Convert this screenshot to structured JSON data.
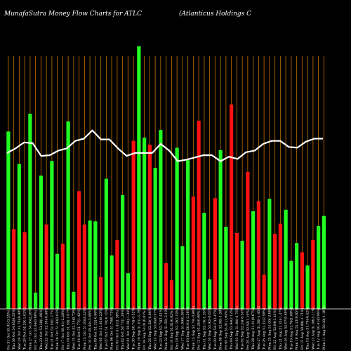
{
  "chart_data": {
    "type": "bar",
    "title_left": "MunafaSutra  Money Flow  Charts for ATLC",
    "title_right": "(Atlanticus Holdings C",
    "categories": [
      "Fri 31 Oct 55.81(3.25%)",
      "Thu 30 Oct 54.05(0.55%)",
      "Wed 29 Oct 53.76(-0.98%)",
      "Tue 28 Oct 54.29(-1.02%)",
      "Mon 27 Oct 54.85(2.26%)",
      "Fri 24 Oct 53.64(0.68%)",
      "Thu 23 Oct 53.28(1.86%)",
      "Wed 22 Oct 52.30(-0.46%)",
      "Tue 21 Oct 52.54(1.17%)",
      "Mon 20 Oct 51.93(3.02%)",
      "Fri 17 Oct 50.41(-2.28%)",
      "Thu 16 Oct 51.59(-1.07%)",
      "Wed 15 Oct 52.15(0.73%)",
      "Tue 14 Oct 51.77(1.45%)",
      "Mon 13 Oct 51.03(3.22%)",
      "Fri 10 Oct 49.44(-3.66%)",
      "Thu 09 Oct 51.32(-0.96%)",
      "Wed 08 Oct 51.82(0.23%)",
      "Tue 07 Oct 51.70(-0.15%)",
      "Mon 06 Oct 51.78(0.71%)",
      "Fri 03 Oct 51.41(1.38%)",
      "Thu 02 Oct 50.71(1.29%)",
      "Wed 01 Oct 50.06(-1.34%)",
      "Tue 30 Sep 50.74(-0.52%)",
      "Mon 29 Sep 51.01(-3.78%)",
      "Fri 26 Sep 53.01(0.81%)",
      "Thu 25 Sep 52.58(-0.86%)",
      "Wed 24 Sep 53.04(0.57%)",
      "Tue 23 Sep 52.74(2.41%)",
      "Mon 22 Sep 51.50(-2.10%)",
      "Fri 19 Sep 52.61(0.82%)",
      "Thu 18 Sep 52.18(2.14%)",
      "Wed 17 Sep 51.09(0.36%)",
      "Tue 16 Sep 50.91(-3.56%)",
      "Mon 15 Sep 52.79(-0.84%)",
      "Fri 12 Sep 53.24(0.09%)",
      "Thu 11 Sep 53.19(-1.35%)",
      "Wed 10 Sep 53.92(-0.65%)",
      "Tue 09 Sep 54.27(2.47%)",
      "Mon 08 Sep 52.96(-1.58%)",
      "Fri 05 Sep 53.81(1.64%)",
      "Thu 04 Sep 52.94(2.12%)",
      "Wed 03 Sep 51.84(-0.76%)",
      "Tue 02 Sep 52.24(-0.54%)",
      "Fri 29 Aug 52.52(1.19%)",
      "Thu 28 Aug 51.91(0.67%)",
      "Wed 27 Aug 51.56(-1.45%)",
      "Tue 26 Aug 52.32(2.58%)",
      "Mon 25 Aug 51.00(-2.00%)",
      "Fri 22 Aug 52.04(1.33%)",
      "Thu 21 Aug 51.35(-1.37%)",
      "Wed 20 Aug 52.07(0.60%)",
      "Tue 19 Aug 51.76(1.08%)",
      "Mon 18 Aug 51.21(0.65%)",
      "Fri 15 Aug 50.88(-1.71%)",
      "Thu 14 Aug 51.76(-0.42%)",
      "Wed 13 Aug 51.98(3.11%)",
      "Tue 12 Aug 50.41(0.06%)",
      "Mon 11 Aug 50.38(-1.16%)"
    ],
    "series": [
      {
        "values": [
          22.9,
          10.3,
          18.7,
          9.9,
          25.2,
          2.1,
          17.2,
          10.9,
          19.1,
          7.1,
          8.4,
          24.2,
          2.2,
          15.2,
          10.9,
          11.4,
          11.3,
          4.1,
          16.8,
          6.9,
          8.9,
          14.7,
          4.6,
          21.7,
          33.9,
          22.1,
          21.2,
          18.2,
          23.1,
          5.9,
          3.7,
          20.8,
          8.1,
          19.2,
          14.5,
          24.3,
          12.4,
          3.8,
          14.3,
          20.5,
          10.6,
          26.4,
          9.8,
          8.8,
          17.7,
          12.6,
          13.9,
          4.4,
          14.2,
          9.7,
          11.0,
          12.8,
          6.2,
          8.5,
          7.3,
          5.6,
          8.9,
          10.7,
          12.0
        ],
        "colors": [
          "green",
          "red",
          "green",
          "red",
          "green",
          "green",
          "green",
          "red",
          "green",
          "green",
          "red",
          "green",
          "green",
          "red",
          "red",
          "green",
          "green",
          "red",
          "green",
          "green",
          "red",
          "green",
          "green",
          "red",
          "green",
          "green",
          "red",
          "green",
          "green",
          "red",
          "red",
          "green",
          "green",
          "green",
          "red",
          "red",
          "green",
          "green",
          "red",
          "green",
          "green",
          "red",
          "red",
          "green",
          "red",
          "green",
          "red",
          "red",
          "green",
          "red",
          "red",
          "green",
          "green",
          "green",
          "red",
          "green",
          "red",
          "green",
          "green"
        ]
      }
    ],
    "bar_values": [
      22.9,
      10.3,
      18.7,
      9.9,
      25.2,
      2.1,
      17.2,
      10.9,
      19.1,
      7.1,
      8.4,
      24.2,
      2.2,
      15.2,
      10.9,
      11.4,
      11.3,
      4.1,
      16.8,
      6.9,
      8.9,
      14.7,
      4.6,
      21.7,
      33.9,
      22.1,
      21.2,
      18.2,
      23.1,
      5.9,
      3.7,
      20.8,
      8.1,
      19.2,
      14.5,
      24.3,
      12.4,
      3.8,
      14.3,
      20.5,
      10.6,
      26.4,
      9.8,
      8.8,
      17.7,
      12.6,
      13.9,
      4.4,
      14.2,
      9.7,
      11.0,
      12.8,
      6.2,
      8.5,
      7.3,
      5.6,
      8.9,
      10.7,
      12.0
    ],
    "price_values": [
      52.0,
      52.6,
      53.4,
      53.3,
      51.6,
      51.7,
      52.3,
      52.6,
      53.6,
      53.9,
      55.0,
      53.8,
      53.8,
      52.6,
      51.6,
      52.0,
      52.0,
      52.0,
      53.2,
      52.3,
      50.9,
      51.1,
      51.4,
      51.7,
      51.7,
      50.9,
      51.5,
      51.2,
      52.1,
      52.3,
      53.2,
      53.6,
      53.6,
      52.8,
      52.7,
      53.5,
      53.9,
      53.9
    ]
  },
  "colors": {
    "background": "#000000",
    "bar_up": "#22ff22",
    "bar_down": "#ff1111",
    "grid": "#b26a00",
    "price_line": "#ffffff",
    "axis": "#ffffff"
  }
}
